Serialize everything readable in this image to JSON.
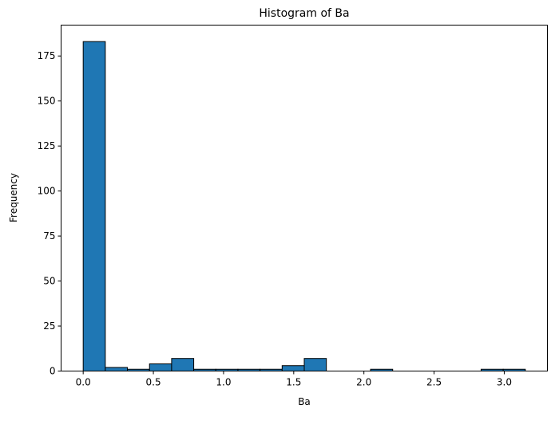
{
  "chart_data": {
    "type": "bar",
    "title": "Histogram of Ba",
    "xlabel": "Ba",
    "ylabel": "Frequency",
    "bins": {
      "edges": [
        0.0,
        0.1575,
        0.315,
        0.4725,
        0.63,
        0.7875,
        0.945,
        1.1025,
        1.26,
        1.4175,
        1.575,
        1.7325,
        1.89,
        2.0475,
        2.205,
        2.3625,
        2.52,
        2.6775,
        2.835,
        2.9925,
        3.15
      ],
      "counts": [
        183,
        2,
        1,
        4,
        7,
        1,
        1,
        1,
        1,
        3,
        7,
        0,
        0,
        1,
        0,
        0,
        0,
        0,
        1,
        1
      ]
    },
    "xlim": [
      -0.1575,
      3.3075
    ],
    "ylim": [
      0,
      192.15
    ],
    "xticks": [
      0.0,
      0.5,
      1.0,
      1.5,
      2.0,
      2.5,
      3.0
    ],
    "xtick_labels": [
      "0.0",
      "0.5",
      "1.0",
      "1.5",
      "2.0",
      "2.5",
      "3.0"
    ],
    "yticks": [
      0,
      25,
      50,
      75,
      100,
      125,
      150,
      175
    ],
    "ytick_labels": [
      "0",
      "25",
      "50",
      "75",
      "100",
      "125",
      "150",
      "175"
    ],
    "grid": false,
    "colors": {
      "bar_fill": "#1f77b4",
      "bar_edge": "#000000"
    }
  }
}
